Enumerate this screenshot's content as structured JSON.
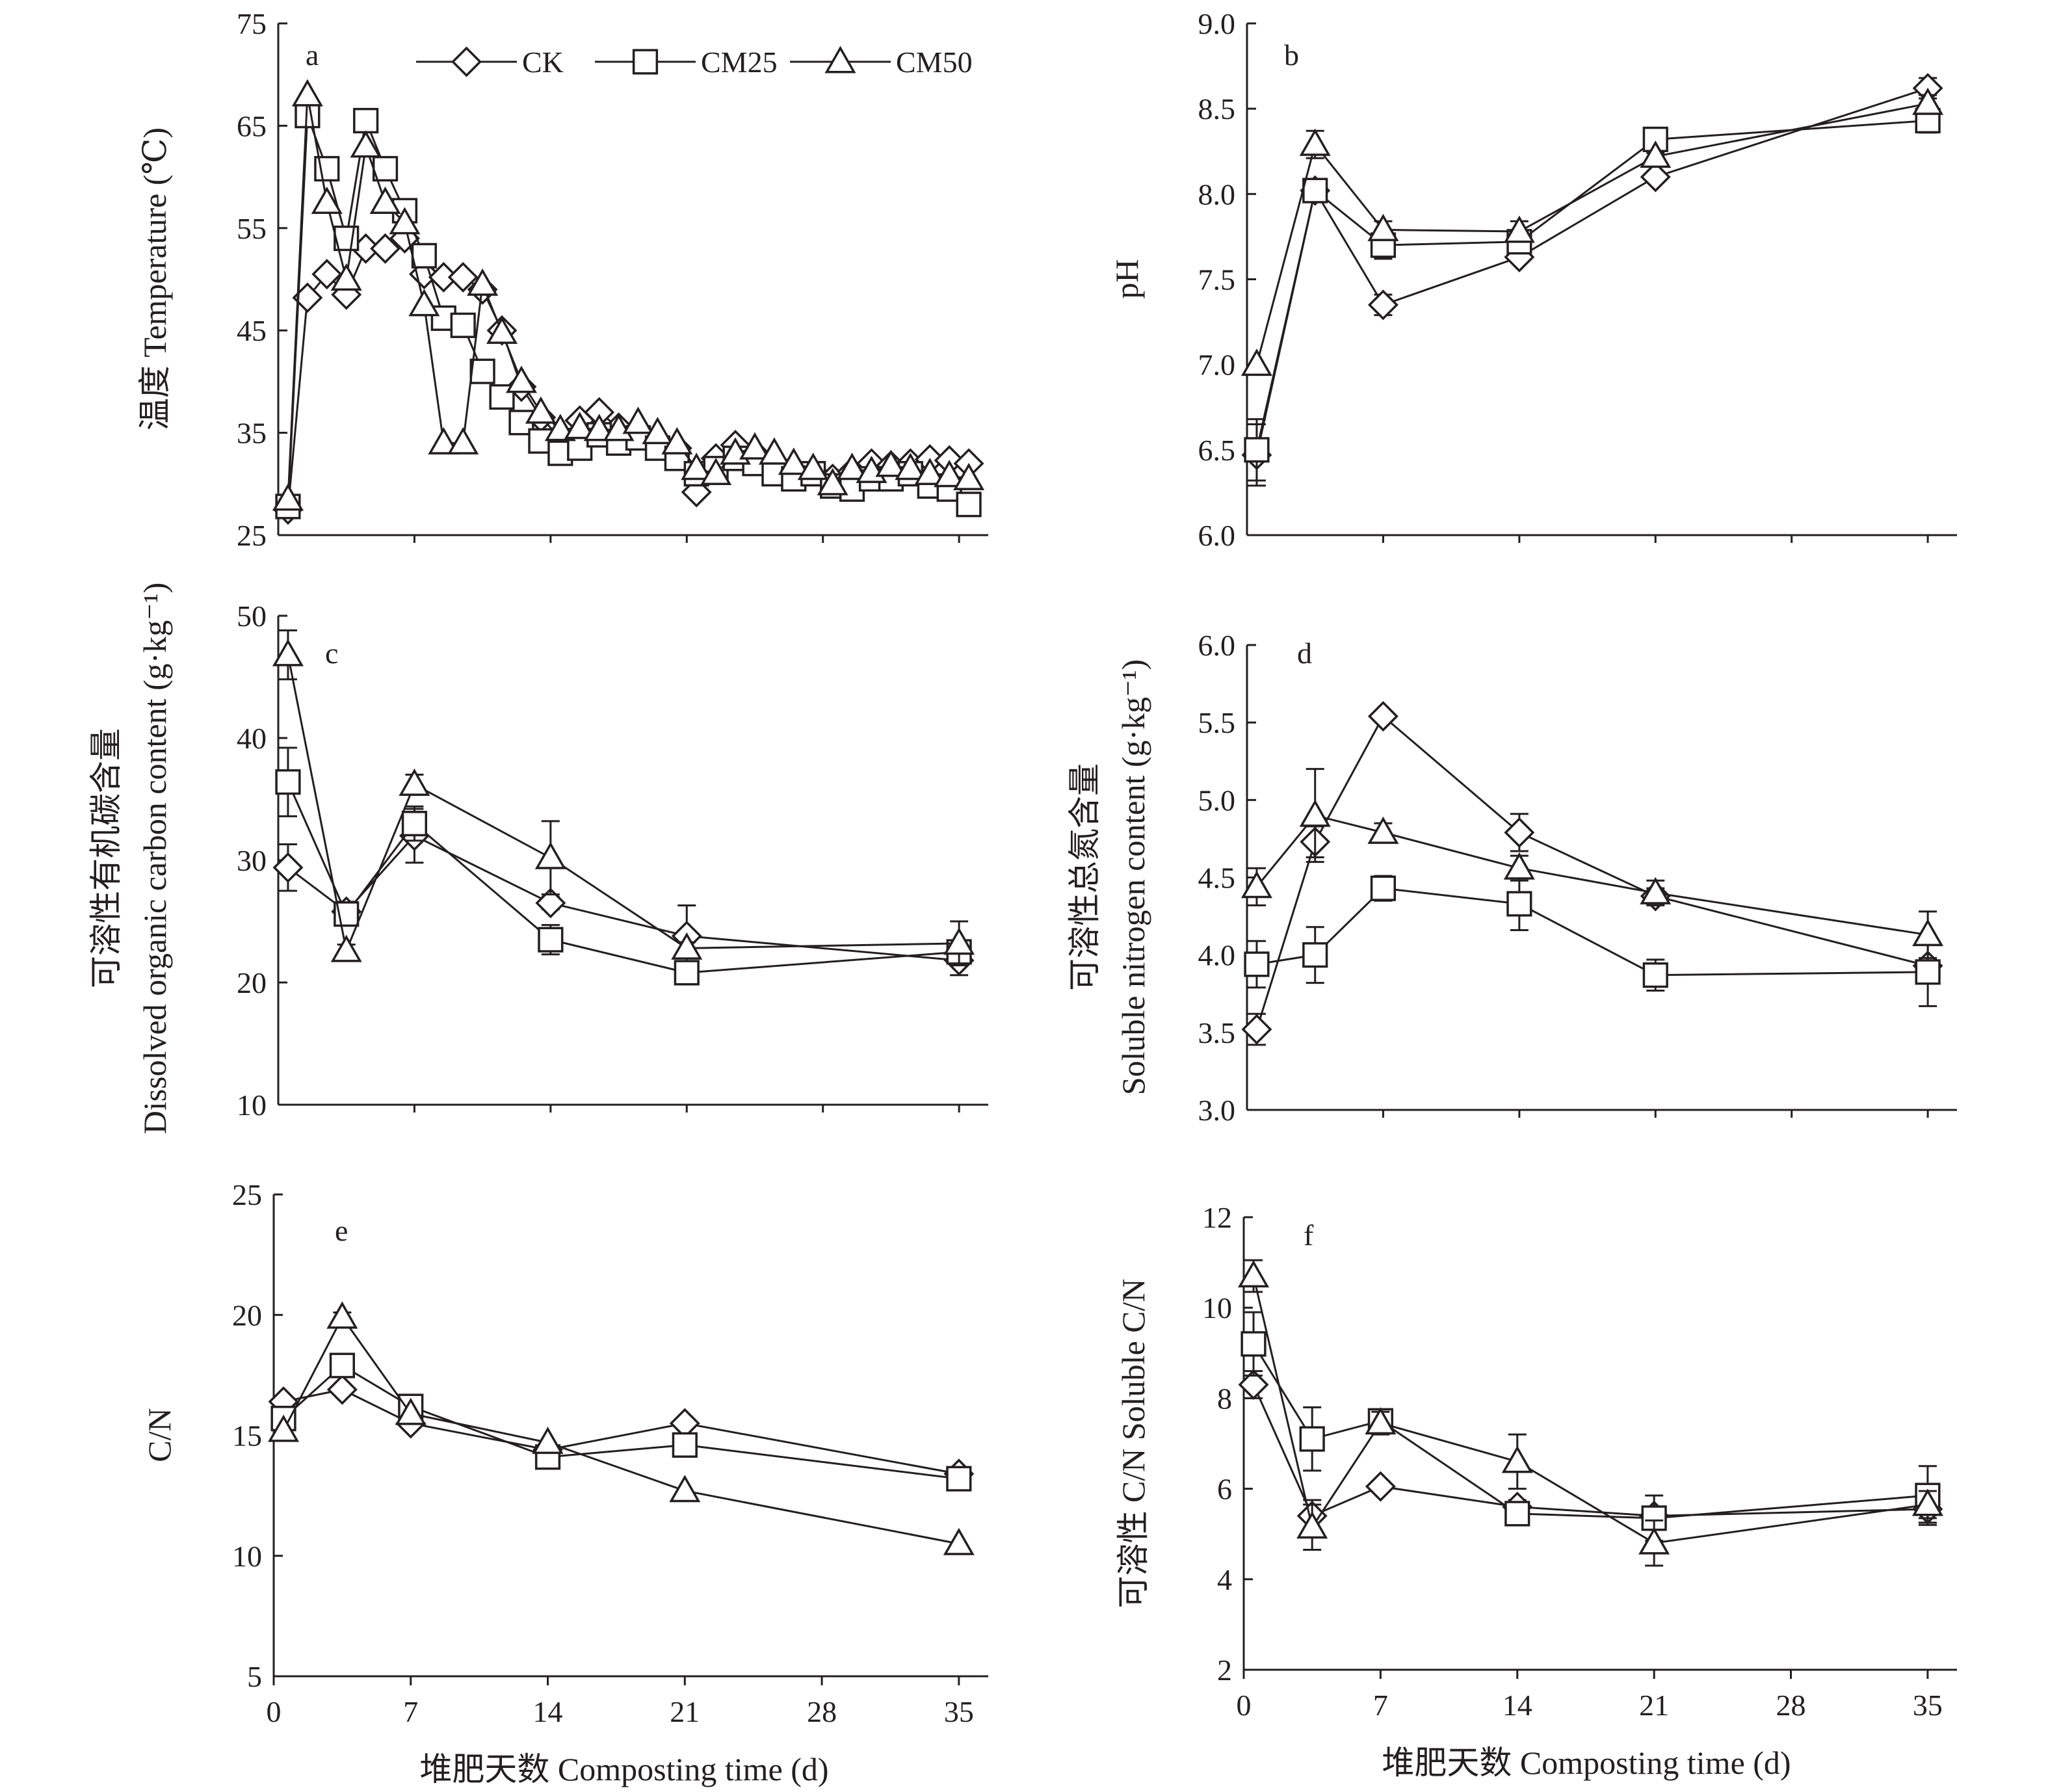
{
  "series_names": [
    "CK",
    "CM25",
    "CM50"
  ],
  "series_markers": [
    "diamond",
    "square",
    "triangle"
  ],
  "legend": {
    "placement": "top-center of panel a",
    "entries": [
      "CK",
      "CM25",
      "CM50"
    ]
  },
  "x_axis_title": "堆肥天数 Composting time (d)",
  "colors": {
    "ink": "#231f20",
    "marker_fill": "#ffffff",
    "background": "#ffffff"
  },
  "chart_data": [
    {
      "id": "a",
      "type": "line",
      "letter": "a",
      "ylabel_lines": [
        "温度 Temperature (℃)"
      ],
      "xlim": [
        0,
        36.5
      ],
      "xticks": [],
      "xminor": [
        7,
        14,
        21,
        28,
        35
      ],
      "ylim": [
        25,
        75
      ],
      "yticks": [
        25,
        35,
        45,
        55,
        65,
        75
      ],
      "show_x_labels": false,
      "show_legend": true,
      "series": [
        {
          "name": "CK",
          "marker": "diamond",
          "x": [
            0.5,
            1.5,
            2.5,
            3.5,
            4.5,
            5.5,
            6.5,
            7.5,
            8.5,
            9.5,
            10.5,
            11.5,
            12.5,
            13.5,
            14.5,
            15.5,
            16.5,
            17.5,
            18.5,
            19.5,
            20.5,
            21.5,
            22.5,
            23.5,
            24.5,
            25.5,
            26.5,
            27.5,
            28.5,
            29.5,
            30.5,
            31.5,
            32.5,
            33.5,
            34.5,
            35.5
          ],
          "y": [
            27.5,
            48.2,
            50.5,
            48.5,
            53.0,
            53.0,
            54.0,
            50.5,
            50.2,
            50.2,
            49.0,
            45.0,
            39.5,
            36.5,
            34.5,
            36.2,
            37.0,
            35.5,
            35.0,
            34.0,
            33.5,
            29.2,
            32.5,
            33.8,
            33.0,
            32.0,
            31.5,
            31.2,
            30.5,
            31.2,
            32.0,
            31.8,
            32.0,
            32.4,
            32.3,
            32.0
          ],
          "err": []
        },
        {
          "name": "CM25",
          "marker": "square",
          "x": [
            0.5,
            1.5,
            2.5,
            3.5,
            4.5,
            5.5,
            6.5,
            7.5,
            8.5,
            9.5,
            10.5,
            11.5,
            12.5,
            13.5,
            14.5,
            15.5,
            16.5,
            17.5,
            18.5,
            19.5,
            20.5,
            21.5,
            22.5,
            23.5,
            24.5,
            25.5,
            26.5,
            27.5,
            28.5,
            29.5,
            30.5,
            31.5,
            32.5,
            33.5,
            34.5,
            35.5
          ],
          "y": [
            27.8,
            66.0,
            60.8,
            54.0,
            65.5,
            60.8,
            56.7,
            52.3,
            46.2,
            45.5,
            41.0,
            38.5,
            36.0,
            34.2,
            33.0,
            33.5,
            34.8,
            34.0,
            34.5,
            33.5,
            32.5,
            31.0,
            31.5,
            32.5,
            32.0,
            31.0,
            30.5,
            31.0,
            29.8,
            29.5,
            30.5,
            30.5,
            31.0,
            29.8,
            29.5,
            28.0
          ],
          "err": []
        },
        {
          "name": "CM50",
          "marker": "triangle",
          "x": [
            0.5,
            1.5,
            2.5,
            3.5,
            4.5,
            5.5,
            6.5,
            7.5,
            8.5,
            9.5,
            10.5,
            11.5,
            12.5,
            13.5,
            14.5,
            15.5,
            16.5,
            17.5,
            18.5,
            19.5,
            20.5,
            21.5,
            22.5,
            23.5,
            24.5,
            25.5,
            26.5,
            27.5,
            28.5,
            29.5,
            30.5,
            31.5,
            32.5,
            33.5,
            34.5,
            35.5
          ],
          "y": [
            28.5,
            68.0,
            57.5,
            50.0,
            63.0,
            57.5,
            55.5,
            47.5,
            34.0,
            34.0,
            49.5,
            44.8,
            40.0,
            37.0,
            35.3,
            35.5,
            35.3,
            35.3,
            36.0,
            35.0,
            34.0,
            31.5,
            31.0,
            33.0,
            33.5,
            33.0,
            32.0,
            31.5,
            30.0,
            31.5,
            31.2,
            31.8,
            31.5,
            31.0,
            30.8,
            30.5
          ],
          "err": []
        }
      ]
    },
    {
      "id": "b",
      "type": "line",
      "letter": "b",
      "ylabel_lines": [
        "pH"
      ],
      "xlim": [
        0,
        36.5
      ],
      "xticks": [],
      "xminor": [
        7,
        14,
        21,
        28,
        35
      ],
      "ylim": [
        6.0,
        9.0
      ],
      "yticks": [
        "6.0",
        "6.5",
        "7.0",
        "7.5",
        "8.0",
        "8.5",
        "9.0"
      ],
      "show_x_labels": false,
      "show_legend": false,
      "series": [
        {
          "name": "CK",
          "marker": "diamond",
          "x": [
            0.5,
            3.5,
            7,
            14,
            21,
            35
          ],
          "y": [
            6.47,
            8.02,
            7.35,
            7.63,
            8.1,
            8.62
          ],
          "err": [
            0.18,
            0.0,
            0.06,
            0.03,
            0.03,
            0.06
          ]
        },
        {
          "name": "CM25",
          "marker": "square",
          "x": [
            0.5,
            3.5,
            7,
            14,
            21,
            35
          ],
          "y": [
            6.5,
            8.02,
            7.7,
            7.72,
            8.32,
            8.43
          ],
          "err": [
            0.18,
            0.0,
            0.08,
            0.03,
            0.03,
            0.07
          ]
        },
        {
          "name": "CM50",
          "marker": "triangle",
          "x": [
            0.5,
            3.5,
            7,
            14,
            21,
            35
          ],
          "y": [
            7.0,
            8.29,
            7.79,
            7.78,
            8.22,
            8.53
          ],
          "err": [
            0.0,
            0.08,
            0.05,
            0.06,
            0.02,
            0.05
          ]
        }
      ]
    },
    {
      "id": "c",
      "type": "line",
      "letter": "c",
      "ylabel_lines": [
        "可溶性有机碳含量",
        "Dissolved organic carbon content (g·kg⁻¹)"
      ],
      "xlim": [
        0,
        36.5
      ],
      "xticks": [],
      "xminor": [
        7,
        14,
        21,
        28,
        35
      ],
      "ylim": [
        10,
        50
      ],
      "yticks": [
        10,
        20,
        30,
        40,
        50
      ],
      "show_x_labels": false,
      "show_legend": false,
      "series": [
        {
          "name": "CK",
          "marker": "diamond",
          "x": [
            0.5,
            3.5,
            7,
            14,
            21,
            35
          ],
          "y": [
            29.4,
            25.8,
            32.0,
            26.5,
            23.8,
            21.8
          ],
          "err": [
            1.9,
            0.8,
            2.2,
            0.5,
            2.5,
            1.2
          ]
        },
        {
          "name": "CM25",
          "marker": "square",
          "x": [
            0.5,
            3.5,
            7,
            14,
            21,
            35
          ],
          "y": [
            36.4,
            25.6,
            33.0,
            23.5,
            20.8,
            22.5
          ],
          "err": [
            2.8,
            0.8,
            1.4,
            1.2,
            0.3,
            0.5
          ]
        },
        {
          "name": "CM50",
          "marker": "triangle",
          "x": [
            0.5,
            3.5,
            7,
            14,
            21,
            35
          ],
          "y": [
            46.8,
            22.6,
            36.2,
            30.2,
            22.8,
            23.2
          ],
          "err": [
            2.0,
            0.5,
            0.8,
            3.0,
            0.5,
            1.8
          ]
        }
      ]
    },
    {
      "id": "d",
      "type": "line",
      "letter": "d",
      "ylabel_lines": [
        "可溶性总氮含量",
        "Soluble nitrogen content (g·kg⁻¹)"
      ],
      "xlim": [
        0,
        36.5
      ],
      "xticks": [],
      "xminor": [
        7,
        14,
        21,
        28,
        35
      ],
      "ylim": [
        3.0,
        6.0
      ],
      "yticks": [
        "3.0",
        "3.5",
        "4.0",
        "4.5",
        "5.0",
        "5.5",
        "6.0"
      ],
      "show_x_labels": false,
      "show_legend": false,
      "series": [
        {
          "name": "CK",
          "marker": "diamond",
          "x": [
            0.5,
            3.5,
            7,
            14,
            21,
            35
          ],
          "y": [
            3.52,
            4.73,
            5.54,
            4.79,
            4.38,
            3.93
          ],
          "err": [
            0.1,
            0.1,
            0.0,
            0.12,
            0.05,
            0.04
          ]
        },
        {
          "name": "CM25",
          "marker": "square",
          "x": [
            0.5,
            3.5,
            7,
            14,
            21,
            35
          ],
          "y": [
            3.94,
            4.0,
            4.43,
            4.33,
            3.87,
            3.89
          ],
          "err": [
            0.15,
            0.18,
            0.08,
            0.17,
            0.1,
            0.22
          ]
        },
        {
          "name": "CM50",
          "marker": "triangle",
          "x": [
            0.5,
            3.5,
            7,
            14,
            21,
            35
          ],
          "y": [
            4.44,
            4.9,
            4.79,
            4.56,
            4.4,
            4.13
          ],
          "err": [
            0.12,
            0.3,
            0.06,
            0.08,
            0.08,
            0.15
          ]
        }
      ]
    },
    {
      "id": "e",
      "type": "line",
      "letter": "e",
      "ylabel_lines": [
        "C/N"
      ],
      "xlim": [
        0,
        36.5
      ],
      "xticks": [
        0,
        7,
        14,
        21,
        28,
        35
      ],
      "xminor": [],
      "ylim": [
        5,
        25
      ],
      "yticks": [
        5,
        10,
        15,
        20,
        25
      ],
      "show_x_labels": true,
      "show_legend": false,
      "series": [
        {
          "name": "CK",
          "marker": "diamond",
          "x": [
            0.5,
            3.5,
            7,
            14,
            21,
            35
          ],
          "y": [
            16.4,
            16.9,
            15.5,
            14.4,
            15.5,
            13.4
          ],
          "err": [
            0,
            0,
            0,
            0,
            0,
            0
          ]
        },
        {
          "name": "CM25",
          "marker": "square",
          "x": [
            0.5,
            3.5,
            7,
            14,
            21,
            35
          ],
          "y": [
            15.7,
            17.9,
            16.2,
            14.1,
            14.6,
            13.2
          ],
          "err": [
            0,
            0,
            0,
            0,
            0,
            0
          ]
        },
        {
          "name": "CM50",
          "marker": "triangle",
          "x": [
            0.5,
            3.5,
            7,
            14,
            21,
            35
          ],
          "y": [
            15.2,
            19.9,
            15.9,
            14.7,
            12.7,
            10.5
          ],
          "err": [
            0,
            0.2,
            0,
            0,
            0,
            0
          ]
        }
      ]
    },
    {
      "id": "f",
      "type": "line",
      "letter": "f",
      "ylabel_lines": [
        "可溶性 C/N Soluble C/N"
      ],
      "xlim": [
        0,
        36.5
      ],
      "xticks": [
        0,
        7,
        14,
        21,
        28,
        35
      ],
      "xminor": [],
      "ylim": [
        2,
        12
      ],
      "yticks": [
        2,
        4,
        6,
        8,
        10,
        12
      ],
      "show_x_labels": true,
      "show_legend": false,
      "series": [
        {
          "name": "CK",
          "marker": "diamond",
          "x": [
            0.5,
            3.5,
            7,
            14,
            21,
            35
          ],
          "y": [
            8.3,
            5.4,
            6.05,
            5.6,
            5.4,
            5.55
          ],
          "err": [
            0.3,
            0.35,
            0.12,
            0.15,
            0.1,
            0.3
          ]
        },
        {
          "name": "CM25",
          "marker": "square",
          "x": [
            0.5,
            3.5,
            7,
            14,
            21,
            35
          ],
          "y": [
            9.2,
            7.1,
            7.5,
            5.45,
            5.35,
            5.85
          ],
          "err": [
            0.7,
            0.7,
            0.2,
            0.15,
            0.5,
            0.65
          ]
        },
        {
          "name": "CM50",
          "marker": "triangle",
          "x": [
            0.5,
            3.5,
            7,
            14,
            21,
            35
          ],
          "y": [
            10.7,
            5.15,
            7.45,
            6.6,
            4.8,
            5.65
          ],
          "err": [
            0.35,
            0.5,
            0.25,
            0.6,
            0.5,
            0.3
          ]
        }
      ]
    }
  ]
}
